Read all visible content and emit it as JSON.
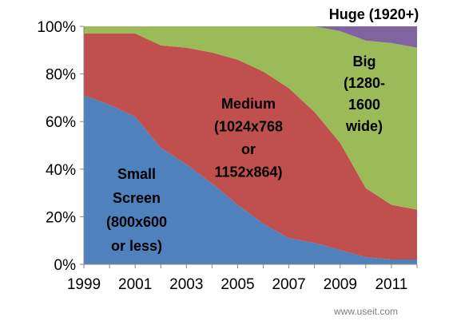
{
  "chart_data": {
    "type": "area",
    "stacked": true,
    "percent": true,
    "x": [
      1999,
      2000,
      2001,
      2002,
      2003,
      2004,
      2005,
      2006,
      2007,
      2008,
      2009,
      2010,
      2011,
      2012
    ],
    "series": [
      {
        "name": "Small Screen (800x600 or less)",
        "label_lines": [
          "Small",
          "Screen",
          "(800x600",
          "or less)"
        ],
        "color": "#4f81bd",
        "values": [
          71,
          67,
          62,
          49,
          42,
          34,
          25,
          17,
          11,
          9,
          6,
          3,
          2,
          2
        ]
      },
      {
        "name": "Medium (1024x768 or 1152x864)",
        "label_lines": [
          "Medium",
          "(1024x768",
          "or",
          "1152x864)"
        ],
        "color": "#c0504d",
        "values": [
          26,
          30,
          35,
          43,
          49,
          55,
          61,
          64,
          63,
          55,
          45,
          29,
          23,
          21
        ]
      },
      {
        "name": "Big (1280-1600 wide)",
        "label_lines": [
          "Big",
          "(1280-",
          "1600",
          "wide)"
        ],
        "color": "#9bbb59",
        "values": [
          3,
          3,
          3,
          8,
          9,
          11,
          14,
          19,
          26,
          36,
          47,
          62,
          68,
          68
        ]
      },
      {
        "name": "Huge (1920+)",
        "label_lines": [
          "Huge (1920+)"
        ],
        "color": "#8064a2",
        "values": [
          0,
          0,
          0,
          0,
          0,
          0,
          0,
          0,
          0,
          0,
          2,
          6,
          7,
          9
        ]
      }
    ],
    "x_ticks": [
      "1999",
      "2001",
      "2003",
      "2005",
      "2007",
      "2009",
      "2011"
    ],
    "y_ticks": [
      "0%",
      "20%",
      "40%",
      "60%",
      "80%",
      "100%"
    ],
    "ylim": [
      0,
      100
    ],
    "xlim": [
      1999,
      2012
    ],
    "grid": false,
    "legend": "inline",
    "source": "www.useit.com"
  }
}
